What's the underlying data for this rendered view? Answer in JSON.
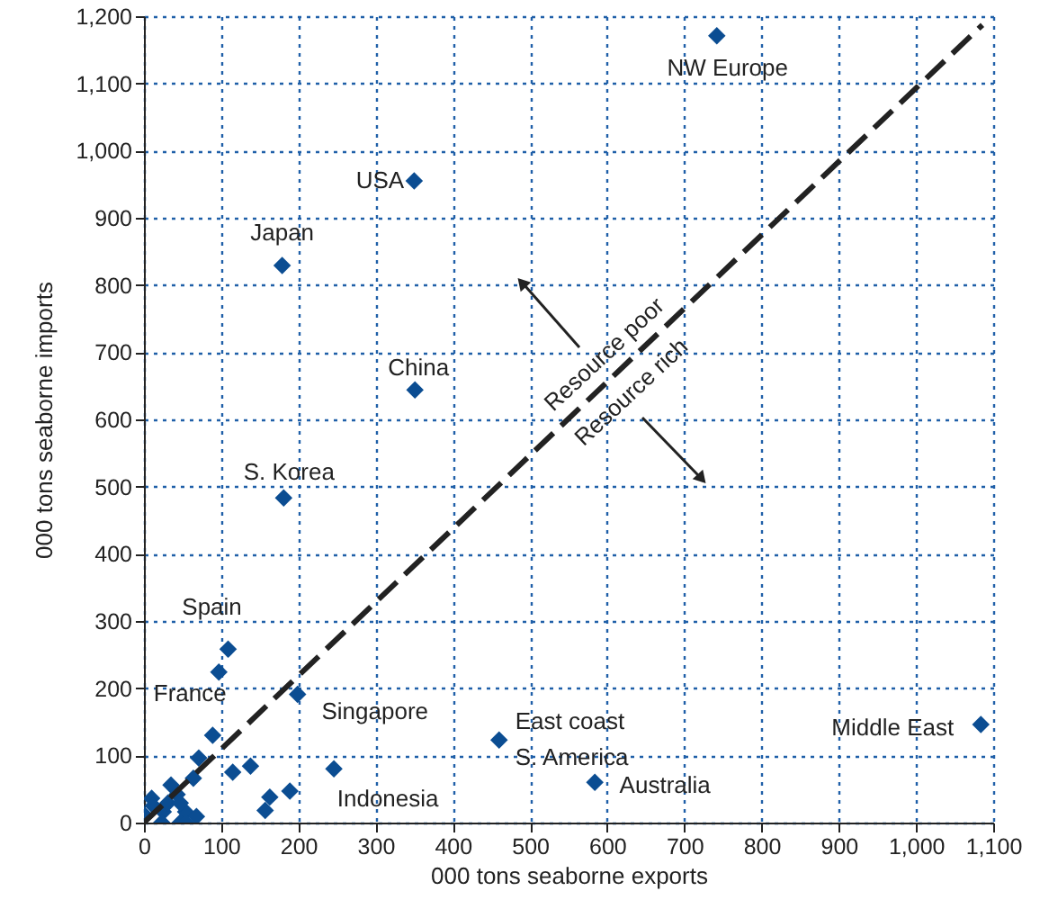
{
  "chart_data": {
    "type": "scatter",
    "xlabel": "000 tons seaborne exports",
    "ylabel": "000 tons seaborne imports",
    "xlim": [
      0,
      1100
    ],
    "ylim": [
      0,
      1200
    ],
    "xticks": [
      0,
      100,
      200,
      300,
      400,
      500,
      600,
      700,
      800,
      900,
      {
        "value": 1000,
        "label": "1,000"
      },
      {
        "value": 1100,
        "label": "1,100"
      }
    ],
    "yticks": [
      0,
      100,
      200,
      300,
      400,
      500,
      600,
      700,
      800,
      900,
      {
        "value": 1000,
        "label": "1,000"
      },
      {
        "value": 1100,
        "label": "1,100"
      },
      {
        "value": 1200,
        "label": "1,200"
      }
    ],
    "grid": true,
    "marker": "diamond",
    "series": [
      {
        "color": "#0b4d92",
        "x": [
          742,
          350,
          179,
          351,
          181,
          109,
          97,
          199,
          89,
          71,
          64,
          115,
          138,
          246,
          189,
          163,
          157,
          35,
          10,
          43,
          0,
          25,
          54,
          68,
          47,
          23,
          12,
          31,
          47,
          54,
          460,
          584,
          1084
        ],
        "values": [
          1171,
          955,
          829,
          644,
          483,
          258,
          224,
          191,
          130,
          96,
          66,
          75,
          84,
          80,
          47,
          38,
          18,
          56,
          36,
          42,
          12,
          16,
          16,
          9,
          0,
          0,
          25,
          29,
          29,
          0,
          123,
          60,
          146
        ]
      },
      {
        "type": "line",
        "color": "#222222",
        "line_style": "dashed",
        "marker": "none",
        "x": [
          0,
          1086
        ],
        "values": [
          0,
          1187
        ]
      }
    ],
    "annotations": [
      {
        "text": "NW Europe",
        "x": 742,
        "y": 1171
      },
      {
        "text": "USA",
        "x": 350,
        "y": 955
      },
      {
        "text": "Japan",
        "x": 179,
        "y": 829
      },
      {
        "text": "China",
        "x": 351,
        "y": 644
      },
      {
        "text": "S. Korea",
        "x": 181,
        "y": 483
      },
      {
        "text": "Spain",
        "x": 109,
        "y": 258
      },
      {
        "text": "France",
        "x": 97,
        "y": 224
      },
      {
        "text": "Singapore",
        "x": 199,
        "y": 191
      },
      {
        "text": "Indonesia",
        "x": 246,
        "y": 80
      },
      {
        "text": "East coast\nS. America",
        "x": 460,
        "y": 123
      },
      {
        "text": "Australia",
        "x": 584,
        "y": 60
      },
      {
        "text": "Middle East",
        "x": 1084,
        "y": 146
      },
      "Resource poor",
      "Resource rich"
    ]
  }
}
